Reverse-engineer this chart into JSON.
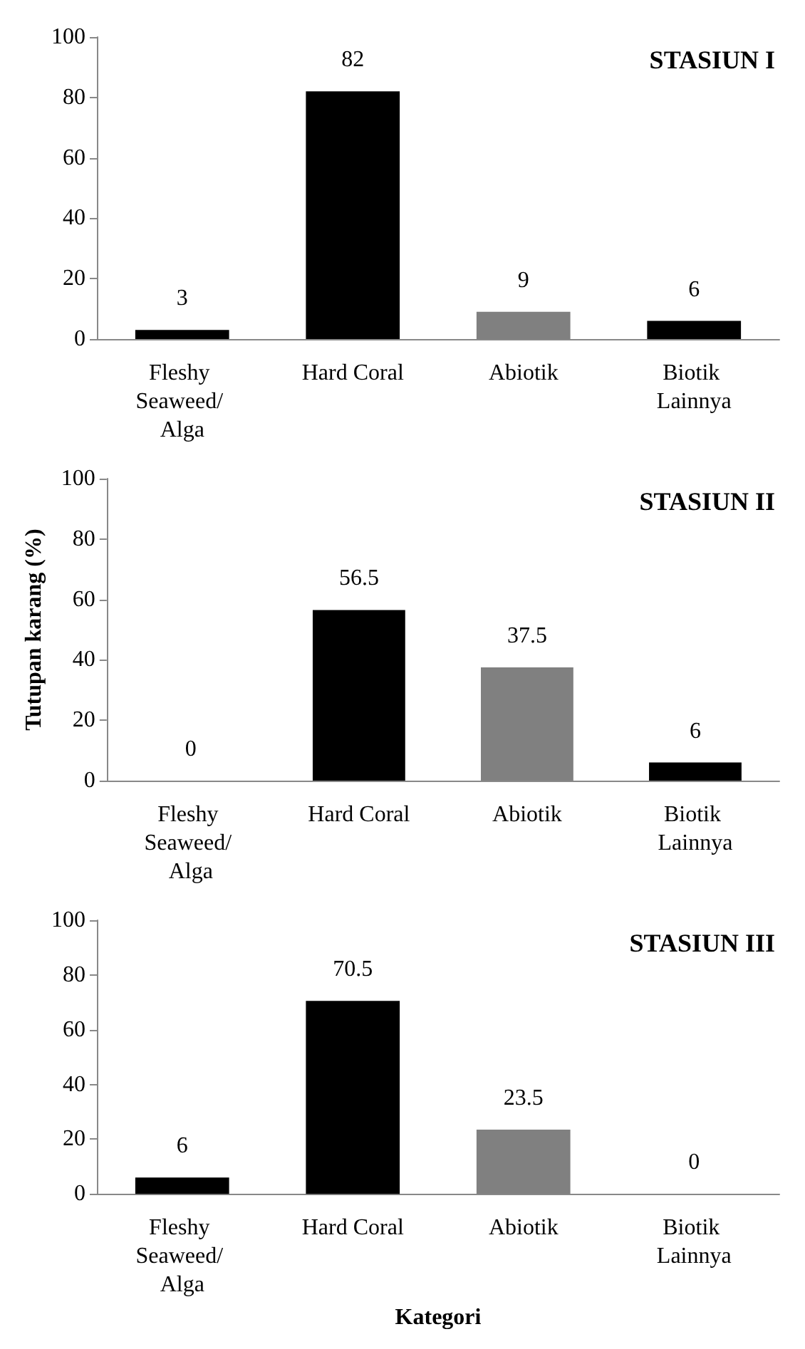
{
  "chart_data": [
    {
      "type": "bar",
      "title": "STASIUN I",
      "categories": [
        "Fleshy Seaweed/ Alga",
        "Hard Coral",
        "Abiotik",
        "Biotik Lainnya"
      ],
      "values": [
        3,
        82,
        9,
        6
      ],
      "colors": [
        "#000000",
        "#000000",
        "#808080",
        "#000000"
      ],
      "ylim": [
        0,
        100
      ],
      "yticks": [
        0,
        20,
        40,
        60,
        80,
        100
      ],
      "data_labels": true,
      "grid": false
    },
    {
      "type": "bar",
      "title": "STASIUN II",
      "ylabel": "Tutupan karang (%)",
      "categories": [
        "Fleshy Seaweed/ Alga",
        "Hard Coral",
        "Abiotik",
        "Biotik Lainnya"
      ],
      "values": [
        0,
        56.5,
        37.5,
        6
      ],
      "colors": [
        "#000000",
        "#000000",
        "#808080",
        "#000000"
      ],
      "ylim": [
        0,
        100
      ],
      "yticks": [
        0,
        20,
        40,
        60,
        80,
        100
      ],
      "data_labels": true,
      "grid": false
    },
    {
      "type": "bar",
      "title": "STASIUN III",
      "xlabel": "Kategori",
      "categories": [
        "Fleshy Seaweed/ Alga",
        "Hard Coral",
        "Abiotik",
        "Biotik Lainnya"
      ],
      "values": [
        6,
        70.5,
        23.5,
        0
      ],
      "colors": [
        "#000000",
        "#000000",
        "#808080",
        "#000000"
      ],
      "ylim": [
        0,
        100
      ],
      "yticks": [
        0,
        20,
        40,
        60,
        80,
        100
      ],
      "data_labels": true,
      "grid": false
    }
  ]
}
